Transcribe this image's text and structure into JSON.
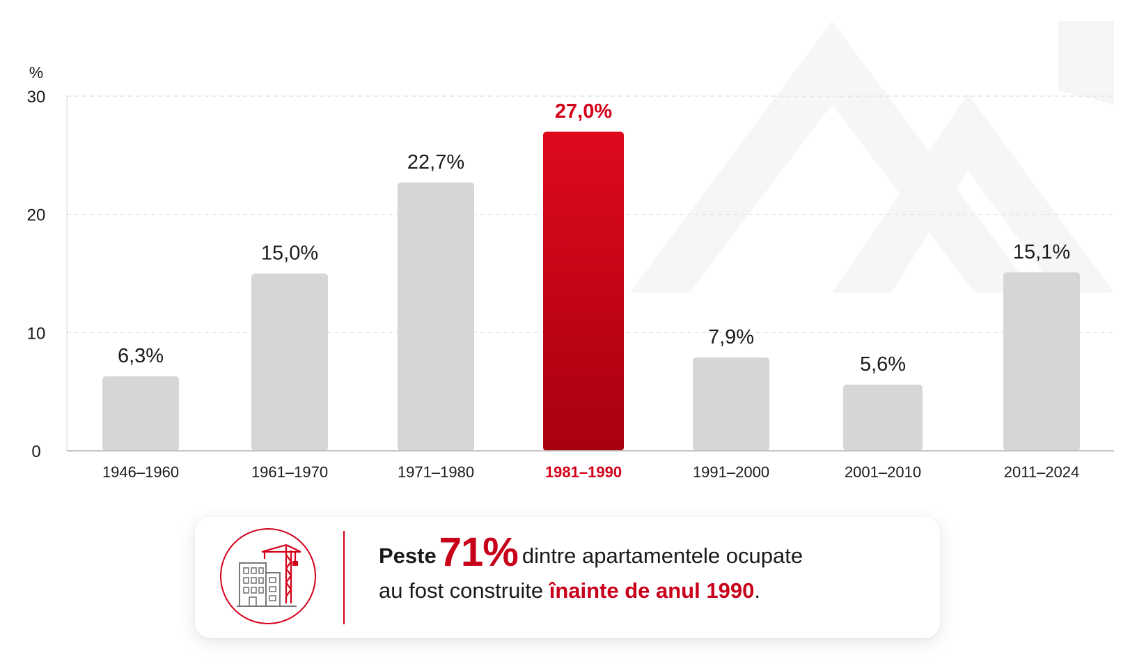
{
  "chart_data": {
    "type": "bar",
    "ylabel": "%",
    "ylim": [
      0,
      30
    ],
    "yticks": [
      0,
      10,
      20,
      30
    ],
    "grid": true,
    "categories": [
      "1946–1960",
      "1961–1970",
      "1971–1980",
      "1981–1990",
      "1991–2000",
      "2001–2010",
      "2011–2024"
    ],
    "values": [
      6.3,
      15.0,
      22.7,
      27.0,
      7.9,
      5.6,
      15.1
    ],
    "value_labels": [
      "6,3%",
      "15,0%",
      "22,7%",
      "27,0%",
      "7,9%",
      "5,6%",
      "15,1%"
    ],
    "highlight_index": 3,
    "colors": {
      "bar": "#d6d6d6",
      "highlight_top": "#de0a1c",
      "highlight_bottom": "#a8000f",
      "highlight_text": "#d40019",
      "grid": "#dedede",
      "axis": "#bdbdbd",
      "watermark": "#f6f6f6"
    }
  },
  "callout": {
    "icon": "building-crane-icon",
    "prefix": "Peste",
    "highlight_number": "71%",
    "line1_rest": "dintre apartamentele ocupate",
    "line2_start": "au fost construite",
    "line2_highlight": "înainte de anul 1990",
    "line2_end": "."
  }
}
